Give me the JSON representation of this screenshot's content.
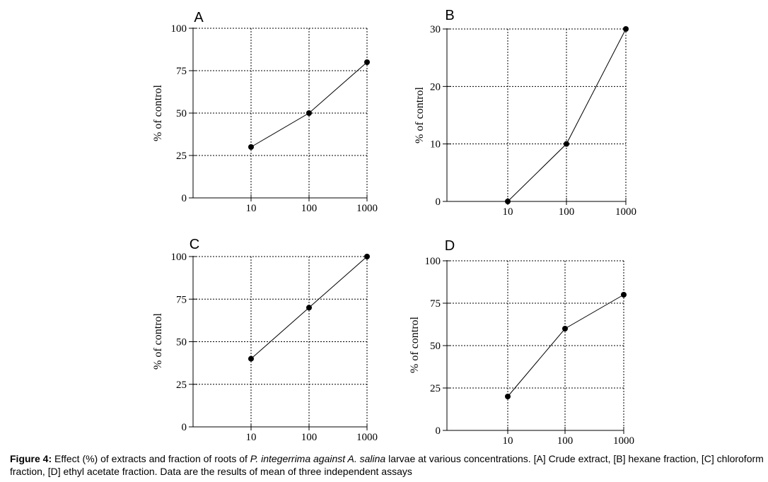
{
  "chart_data": [
    {
      "type": "line",
      "panel_label": "A",
      "x": [
        10,
        100,
        1000
      ],
      "values": [
        30,
        50,
        80
      ],
      "x_scale": "log",
      "xticks": [
        "10",
        "100",
        "1000"
      ],
      "yticks": [
        "0",
        "25",
        "50",
        "75",
        "100"
      ],
      "ylim": [
        0,
        100
      ],
      "ylabel": "% of control",
      "grid": true
    },
    {
      "type": "line",
      "panel_label": "B",
      "x": [
        10,
        100,
        1000
      ],
      "values": [
        0,
        10,
        30
      ],
      "x_scale": "log",
      "xticks": [
        "10",
        "100",
        "1000"
      ],
      "yticks": [
        "0",
        "10",
        "20",
        "30"
      ],
      "ylim": [
        0,
        30
      ],
      "ylabel": "% of control",
      "grid": true
    },
    {
      "type": "line",
      "panel_label": "C",
      "x": [
        10,
        100,
        1000
      ],
      "values": [
        40,
        70,
        100
      ],
      "x_scale": "log",
      "xticks": [
        "10",
        "100",
        "1000"
      ],
      "yticks": [
        "0",
        "25",
        "50",
        "75",
        "100"
      ],
      "ylim": [
        0,
        100
      ],
      "ylabel": "% of control",
      "grid": true
    },
    {
      "type": "line",
      "panel_label": "D",
      "x": [
        10,
        100,
        1000
      ],
      "values": [
        20,
        60,
        80
      ],
      "x_scale": "log",
      "xticks": [
        "10",
        "100",
        "1000"
      ],
      "yticks": [
        "0",
        "25",
        "50",
        "75",
        "100"
      ],
      "ylim": [
        0,
        100
      ],
      "ylabel": "% of control",
      "grid": true
    }
  ],
  "caption": {
    "label": "Figure 4:",
    "text_1": " Effect (%) of extracts and fraction of roots of ",
    "italic": "P. integerrima against A. salina",
    "text_2": " larvae at various concentrations. [A] Crude extract, [B] hexane fraction, [C] chloroform fraction, [D] ethyl acetate fraction. Data are the results of mean of three independent assays"
  }
}
